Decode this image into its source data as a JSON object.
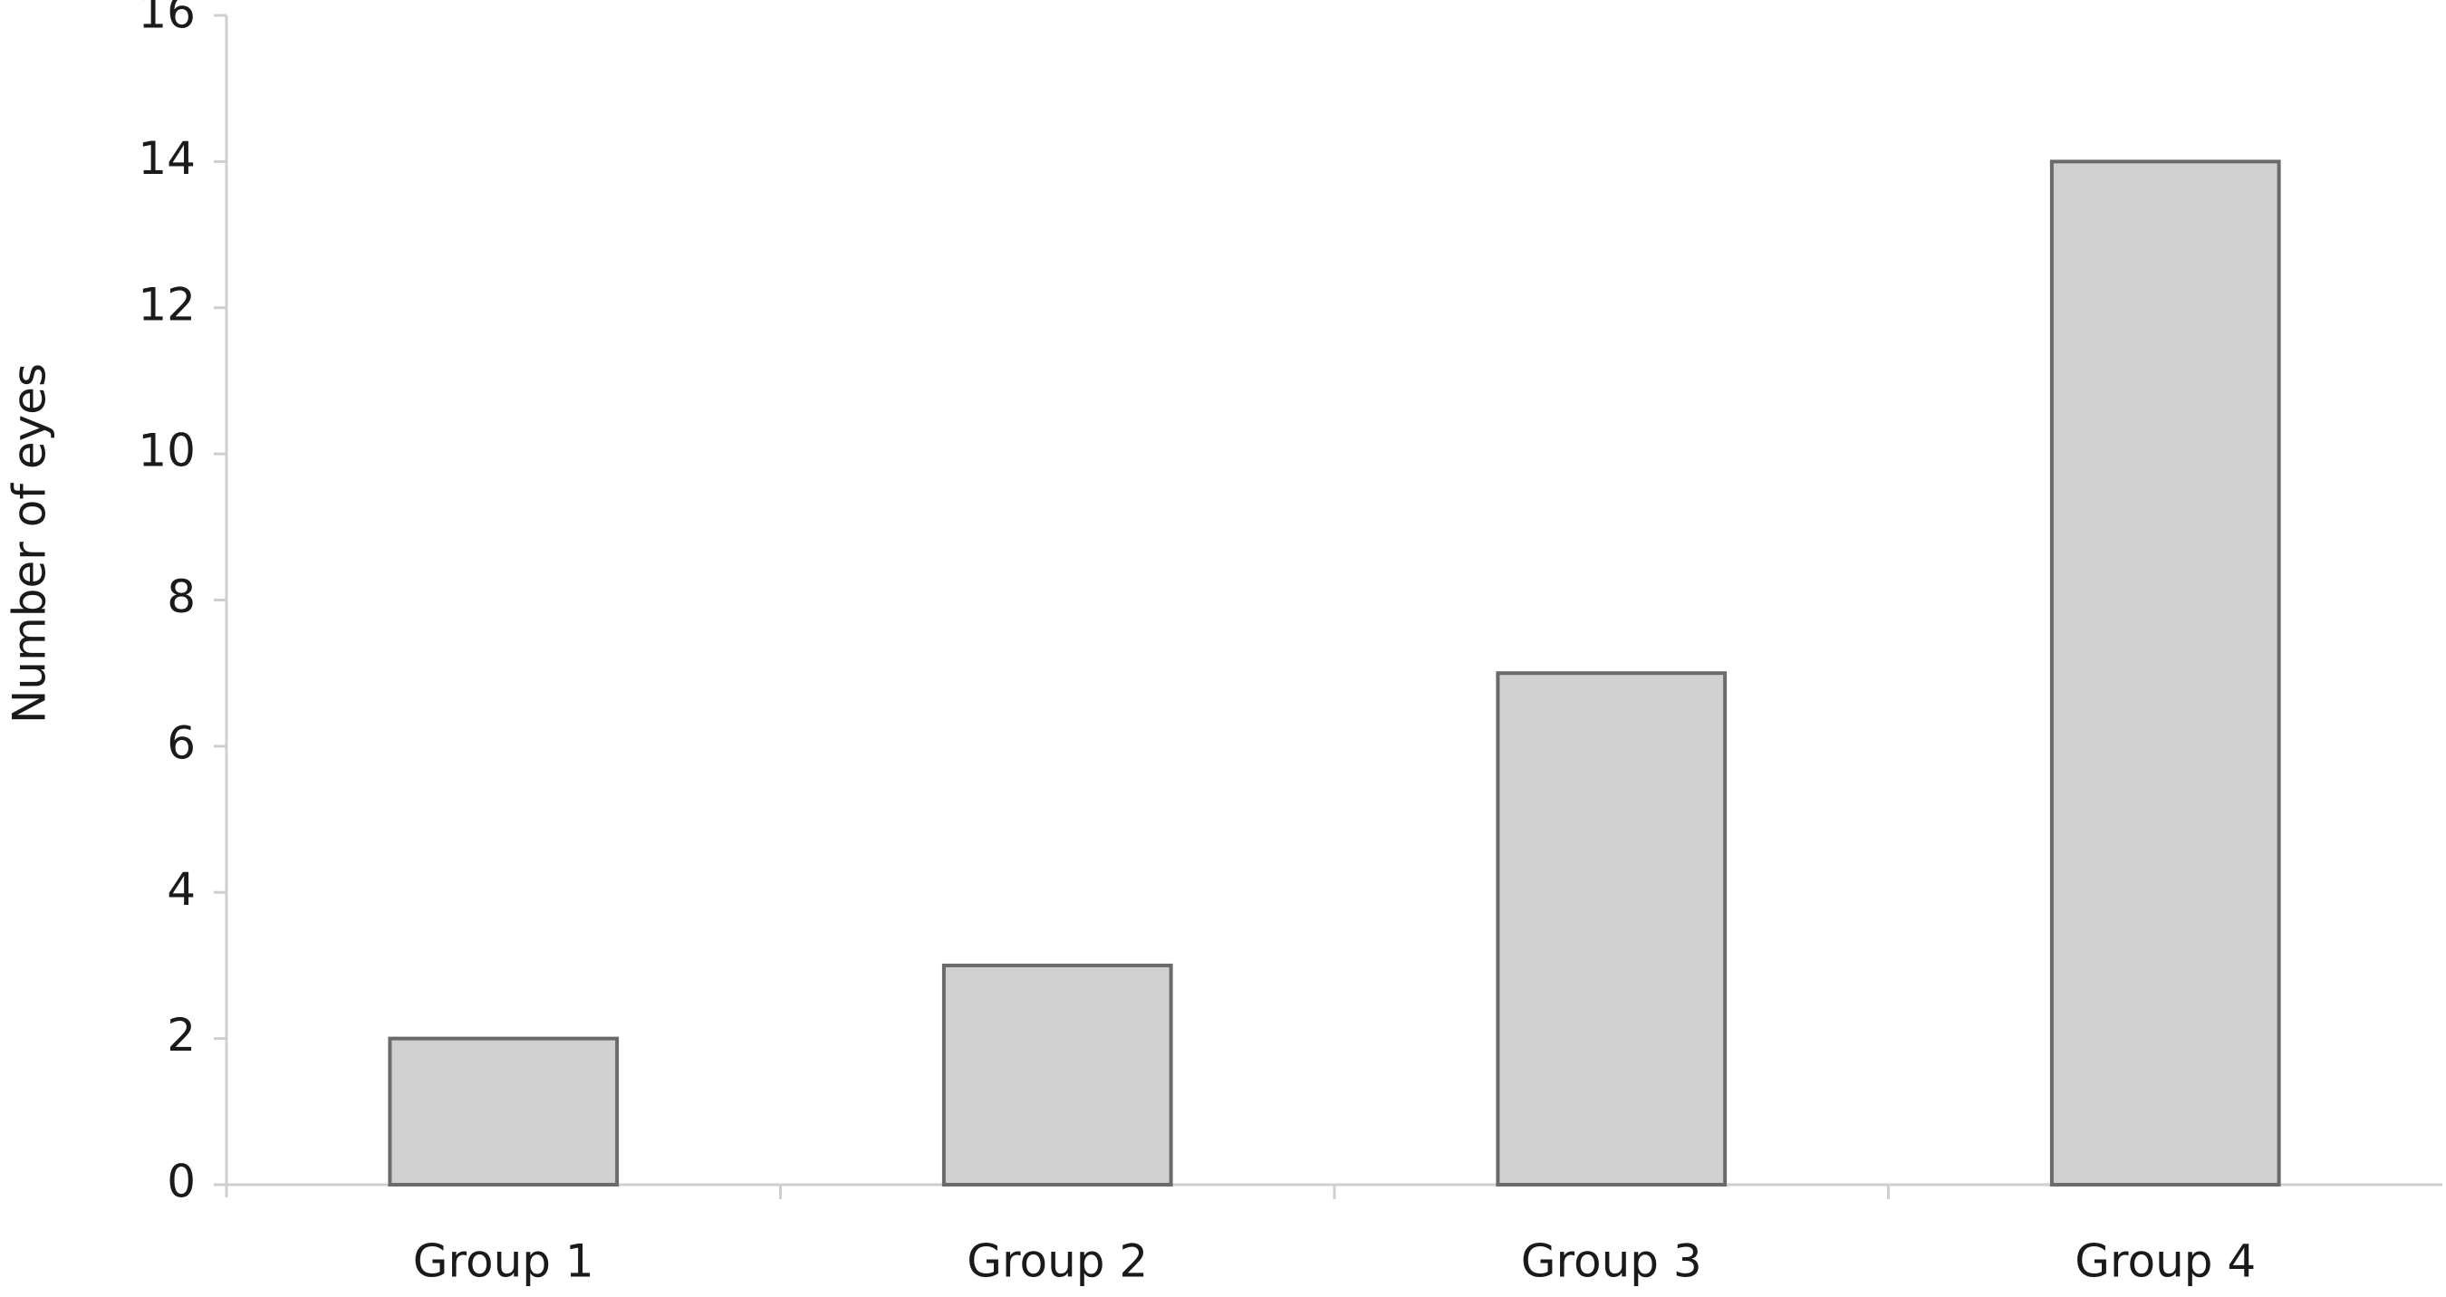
{
  "chart_data": {
    "type": "bar",
    "ylabel": "Number of eyes",
    "categories": [
      "Group 1",
      "Group 2",
      "Group 3",
      "Group 4"
    ],
    "values": [
      2,
      3,
      7,
      14
    ],
    "color": "#d0d0d0",
    "ylim": [
      0,
      16
    ],
    "yticks": [
      0,
      2,
      4,
      6,
      8,
      10,
      12,
      14,
      16
    ],
    "grid": false
  }
}
